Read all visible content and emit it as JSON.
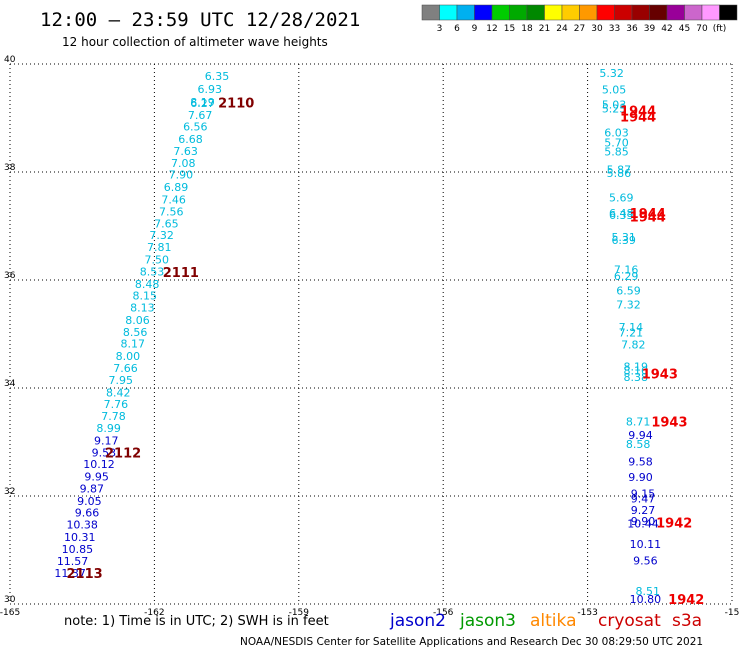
{
  "header": {
    "title": "12:00 — 23:59 UTC 12/28/2021",
    "subtitle": "12 hour collection of altimeter wave heights"
  },
  "colorbar": {
    "colors": [
      "#808080",
      "#00ffff",
      "#00b0f0",
      "#0000ff",
      "#00cc00",
      "#00aa00",
      "#008800",
      "#ffff00",
      "#ffcc00",
      "#ff9900",
      "#ff0000",
      "#cc0000",
      "#990000",
      "#660000",
      "#990099",
      "#cc66cc",
      "#ff99ff",
      "#000000"
    ],
    "labels": [
      "3",
      "6",
      "9",
      "12",
      "15",
      "18",
      "21",
      "24",
      "27",
      "30",
      "33",
      "36",
      "39",
      "42",
      "45",
      "70",
      "(ft)"
    ]
  },
  "footer": {
    "note": "note:  1) Time is in UTC; 2) SWH is in feet",
    "credit": "NOAA/NESDIS Center for Satellite Applications and Research    Dec 30 08:29:50 UTC 2021",
    "legend": [
      {
        "name": "jason2",
        "color": "#0000cc"
      },
      {
        "name": "jason3",
        "color": "#009900"
      },
      {
        "name": "altika",
        "color": "#ff8800"
      },
      {
        "name": "cryosat",
        "color": "#cc0000"
      },
      {
        "name": "s3a",
        "color": "#cc0000"
      }
    ]
  },
  "chart_data": {
    "type": "scatter",
    "xlim": [
      -165,
      -150
    ],
    "ylim": [
      30,
      40
    ],
    "xticks": [
      "-165",
      "-162",
      "-159",
      "-156",
      "-153",
      "-15"
    ],
    "yticks": [
      "40",
      "38",
      "36",
      "34",
      "32",
      "30"
    ],
    "grid": true,
    "series": [
      {
        "points": [
          {
            "lon": -160.7,
            "lat": 39.78,
            "v": "6.35",
            "c": "#00bbdd"
          },
          {
            "lon": -160.85,
            "lat": 39.54,
            "v": "6.93",
            "c": "#00bbdd"
          },
          {
            "lon": -161.0,
            "lat": 39.3,
            "v": "8.19",
            "c": "#00bbdd"
          },
          {
            "lon": -161.0,
            "lat": 39.28,
            "v": "6.27",
            "c": "#00bbdd"
          },
          {
            "lon": -161.05,
            "lat": 39.06,
            "v": "7.67",
            "c": "#00bbdd"
          },
          {
            "lon": -161.15,
            "lat": 38.84,
            "v": "6.56",
            "c": "#00bbdd"
          },
          {
            "lon": -161.25,
            "lat": 38.61,
            "v": "6.68",
            "c": "#00bbdd"
          },
          {
            "lon": -161.35,
            "lat": 38.39,
            "v": "7.63",
            "c": "#00bbdd"
          },
          {
            "lon": -161.4,
            "lat": 38.17,
            "v": "7.08",
            "c": "#00bbdd"
          },
          {
            "lon": -161.45,
            "lat": 37.95,
            "v": "7.90",
            "c": "#00bbdd"
          },
          {
            "lon": -161.55,
            "lat": 37.72,
            "v": "6.89",
            "c": "#00bbdd"
          },
          {
            "lon": -161.6,
            "lat": 37.49,
            "v": "7.46",
            "c": "#00bbdd"
          },
          {
            "lon": -161.65,
            "lat": 37.27,
            "v": "7.56",
            "c": "#00bbdd"
          },
          {
            "lon": -161.75,
            "lat": 37.05,
            "v": "7.65",
            "c": "#00bbdd"
          },
          {
            "lon": -161.85,
            "lat": 36.83,
            "v": "7.32",
            "c": "#00bbdd"
          },
          {
            "lon": -161.9,
            "lat": 36.61,
            "v": "7.81",
            "c": "#00bbdd"
          },
          {
            "lon": -161.95,
            "lat": 36.38,
            "v": "7.50",
            "c": "#00bbdd"
          },
          {
            "lon": -162.05,
            "lat": 36.16,
            "v": "8.53",
            "c": "#00bbdd"
          },
          {
            "lon": -162.15,
            "lat": 35.93,
            "v": "8.48",
            "c": "#00bbdd"
          },
          {
            "lon": -162.2,
            "lat": 35.71,
            "v": "8.15",
            "c": "#00bbdd"
          },
          {
            "lon": -162.25,
            "lat": 35.49,
            "v": "8.13",
            "c": "#00bbdd"
          },
          {
            "lon": -162.35,
            "lat": 35.26,
            "v": "8.06",
            "c": "#00bbdd"
          },
          {
            "lon": -162.4,
            "lat": 35.04,
            "v": "8.56",
            "c": "#00bbdd"
          },
          {
            "lon": -162.45,
            "lat": 34.82,
            "v": "8.17",
            "c": "#00bbdd"
          },
          {
            "lon": -162.55,
            "lat": 34.59,
            "v": "8.00",
            "c": "#00bbdd"
          },
          {
            "lon": -162.6,
            "lat": 34.37,
            "v": "7.66",
            "c": "#00bbdd"
          },
          {
            "lon": -162.7,
            "lat": 34.15,
            "v": "7.95",
            "c": "#00bbdd"
          },
          {
            "lon": -162.75,
            "lat": 33.92,
            "v": "8.42",
            "c": "#00bbdd"
          },
          {
            "lon": -162.8,
            "lat": 33.7,
            "v": "7.76",
            "c": "#00bbdd"
          },
          {
            "lon": -162.85,
            "lat": 33.48,
            "v": "7.78",
            "c": "#00bbdd"
          },
          {
            "lon": -162.95,
            "lat": 33.26,
            "v": "8.99",
            "c": "#00bbdd"
          },
          {
            "lon": -163.0,
            "lat": 33.03,
            "v": "9.17",
            "c": "#0000cc"
          },
          {
            "lon": -163.05,
            "lat": 32.81,
            "v": "9.53",
            "c": "#0000cc"
          },
          {
            "lon": -163.15,
            "lat": 32.59,
            "v": "10.12",
            "c": "#0000cc"
          },
          {
            "lon": -163.2,
            "lat": 32.36,
            "v": "9.95",
            "c": "#0000cc"
          },
          {
            "lon": -163.3,
            "lat": 32.14,
            "v": "9.87",
            "c": "#0000cc"
          },
          {
            "lon": -163.35,
            "lat": 31.91,
            "v": "9.05",
            "c": "#0000cc"
          },
          {
            "lon": -163.4,
            "lat": 31.69,
            "v": "9.66",
            "c": "#0000cc"
          },
          {
            "lon": -163.5,
            "lat": 31.47,
            "v": "10.38",
            "c": "#0000cc"
          },
          {
            "lon": -163.55,
            "lat": 31.24,
            "v": "10.31",
            "c": "#0000cc"
          },
          {
            "lon": -163.6,
            "lat": 31.02,
            "v": "10.85",
            "c": "#0000cc"
          },
          {
            "lon": -163.7,
            "lat": 30.8,
            "v": "11.57",
            "c": "#0000cc"
          },
          {
            "lon": -163.75,
            "lat": 30.57,
            "v": "11.37",
            "c": "#0000cc"
          },
          {
            "lon": -152.5,
            "lat": 39.83,
            "v": "5.32",
            "c": "#00bbdd"
          },
          {
            "lon": -152.45,
            "lat": 39.53,
            "v": "5.05",
            "c": "#00bbdd"
          },
          {
            "lon": -152.45,
            "lat": 39.25,
            "v": "5.03",
            "c": "#00bbdd"
          },
          {
            "lon": -152.45,
            "lat": 39.18,
            "v": "5.25",
            "c": "#00bbdd"
          },
          {
            "lon": -152.4,
            "lat": 38.73,
            "v": "6.03",
            "c": "#00bbdd"
          },
          {
            "lon": -152.4,
            "lat": 38.55,
            "v": "5.70",
            "c": "#00bbdd"
          },
          {
            "lon": -152.4,
            "lat": 38.38,
            "v": "5.85",
            "c": "#00bbdd"
          },
          {
            "lon": -152.35,
            "lat": 38.05,
            "v": "5.87",
            "c": "#00bbdd"
          },
          {
            "lon": -152.35,
            "lat": 37.98,
            "v": "5.86",
            "c": "#00bbdd"
          },
          {
            "lon": -152.3,
            "lat": 37.53,
            "v": "5.69",
            "c": "#00bbdd"
          },
          {
            "lon": -152.3,
            "lat": 37.24,
            "v": "6.48",
            "c": "#00bbdd"
          },
          {
            "lon": -152.3,
            "lat": 37.2,
            "v": "6.33",
            "c": "#00bbdd"
          },
          {
            "lon": -152.25,
            "lat": 36.8,
            "v": "5.31",
            "c": "#00bbdd"
          },
          {
            "lon": -152.25,
            "lat": 36.74,
            "v": "6.39",
            "c": "#00bbdd"
          },
          {
            "lon": -152.2,
            "lat": 36.19,
            "v": "7.16",
            "c": "#00bbdd"
          },
          {
            "lon": -152.2,
            "lat": 36.07,
            "v": "6.29",
            "c": "#00bbdd"
          },
          {
            "lon": -152.15,
            "lat": 35.81,
            "v": "6.59",
            "c": "#00bbdd"
          },
          {
            "lon": -152.15,
            "lat": 35.55,
            "v": "7.32",
            "c": "#00bbdd"
          },
          {
            "lon": -152.1,
            "lat": 35.13,
            "v": "7.14",
            "c": "#00bbdd"
          },
          {
            "lon": -152.1,
            "lat": 35.03,
            "v": "7.21",
            "c": "#00bbdd"
          },
          {
            "lon": -152.05,
            "lat": 34.81,
            "v": "7.82",
            "c": "#00bbdd"
          },
          {
            "lon": -152.0,
            "lat": 34.4,
            "v": "8.19",
            "c": "#00bbdd"
          },
          {
            "lon": -152.0,
            "lat": 34.32,
            "v": "8.16",
            "c": "#00bbdd"
          },
          {
            "lon": -152.0,
            "lat": 34.2,
            "v": "8.38",
            "c": "#00bbdd"
          },
          {
            "lon": -151.95,
            "lat": 33.38,
            "v": "8.71",
            "c": "#00bbdd"
          },
          {
            "lon": -151.9,
            "lat": 33.13,
            "v": "9.94",
            "c": "#0000cc"
          },
          {
            "lon": -151.95,
            "lat": 32.96,
            "v": "8.58",
            "c": "#00bbdd"
          },
          {
            "lon": -151.9,
            "lat": 32.64,
            "v": "9.58",
            "c": "#0000cc"
          },
          {
            "lon": -151.9,
            "lat": 32.35,
            "v": "9.90",
            "c": "#0000cc"
          },
          {
            "lon": -151.85,
            "lat": 32.05,
            "v": "9.15",
            "c": "#0000cc"
          },
          {
            "lon": -151.85,
            "lat": 31.95,
            "v": "9.47",
            "c": "#0000cc"
          },
          {
            "lon": -151.85,
            "lat": 31.74,
            "v": "9.27",
            "c": "#0000cc"
          },
          {
            "lon": -151.85,
            "lat": 31.54,
            "v": "9.90",
            "c": "#0000cc"
          },
          {
            "lon": -151.85,
            "lat": 31.49,
            "v": "10.44",
            "c": "#0000cc"
          },
          {
            "lon": -151.8,
            "lat": 31.11,
            "v": "10.11",
            "c": "#0000cc"
          },
          {
            "lon": -151.8,
            "lat": 30.81,
            "v": "9.56",
            "c": "#0000cc"
          },
          {
            "lon": -151.75,
            "lat": 30.24,
            "v": "8.51",
            "c": "#00bbdd"
          },
          {
            "lon": -151.8,
            "lat": 30.09,
            "v": "10.80",
            "c": "#0000cc"
          }
        ]
      }
    ],
    "time_labels": [
      {
        "lon": -160.3,
        "lat": 39.29,
        "t": "2110",
        "c": "#800000"
      },
      {
        "lon": -161.45,
        "lat": 36.15,
        "t": "2111",
        "c": "#800000"
      },
      {
        "lon": -162.65,
        "lat": 32.81,
        "t": "2112",
        "c": "#800000"
      },
      {
        "lon": -163.45,
        "lat": 30.57,
        "t": "2113",
        "c": "#800000"
      },
      {
        "lon": -151.95,
        "lat": 39.14,
        "t": "1944",
        "c": "#ee0000"
      },
      {
        "lon": -151.95,
        "lat": 39.03,
        "t": "1944",
        "c": "#ee0000"
      },
      {
        "lon": -151.75,
        "lat": 37.24,
        "t": "1944",
        "c": "#ee0000"
      },
      {
        "lon": -151.75,
        "lat": 37.18,
        "t": "1944",
        "c": "#ee0000"
      },
      {
        "lon": -151.5,
        "lat": 34.27,
        "t": "1943",
        "c": "#ee0000"
      },
      {
        "lon": -151.3,
        "lat": 33.38,
        "t": "1943",
        "c": "#ee0000"
      },
      {
        "lon": -151.2,
        "lat": 31.51,
        "t": "1942",
        "c": "#ee0000"
      },
      {
        "lon": -150.95,
        "lat": 30.09,
        "t": "1942",
        "c": "#ee0000"
      }
    ]
  }
}
